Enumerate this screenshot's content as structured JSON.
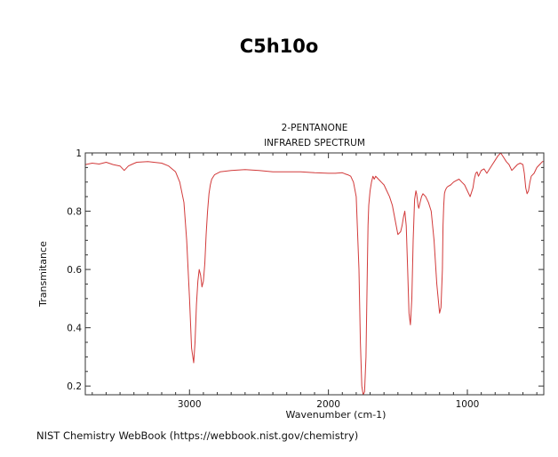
{
  "page": {
    "title": "C5h10o",
    "source_note": "NIST Chemistry WebBook (https://webbook.nist.gov/chemistry)"
  },
  "chart_data": {
    "type": "line",
    "title": "2-PENTANONE",
    "subtitle": "INFRARED SPECTRUM",
    "xlabel": "Wavenumber (cm-1)",
    "ylabel": "Transmitance",
    "xlim": [
      3750,
      450
    ],
    "ylim": [
      0.17,
      1.0
    ],
    "x_reversed": true,
    "x_ticks": [
      3000,
      2000,
      1000
    ],
    "y_ticks": [
      0.2,
      0.4,
      0.6,
      0.8,
      1.0
    ],
    "x_tick_labels": [
      "3000",
      "2000",
      "1000"
    ],
    "y_tick_labels": [
      "0.2",
      "0.4",
      "0.6",
      "0.8",
      "1"
    ],
    "grid": false,
    "line_color": "#d23a3a",
    "series": [
      {
        "x": [
          3750,
          3700,
          3650,
          3600,
          3550,
          3500,
          3470,
          3440,
          3410,
          3380,
          3300,
          3200,
          3150,
          3100,
          3070,
          3040,
          3020,
          3000,
          2985,
          2970,
          2960,
          2950,
          2940,
          2930,
          2920,
          2910,
          2900,
          2890,
          2880,
          2870,
          2860,
          2850,
          2840,
          2820,
          2780,
          2700,
          2600,
          2500,
          2400,
          2300,
          2200,
          2100,
          2000,
          1950,
          1900,
          1880,
          1860,
          1840,
          1820,
          1800,
          1780,
          1770,
          1760,
          1750,
          1740,
          1730,
          1720,
          1715,
          1710,
          1700,
          1690,
          1680,
          1670,
          1660,
          1650,
          1640,
          1630,
          1620,
          1600,
          1580,
          1560,
          1540,
          1520,
          1500,
          1480,
          1470,
          1460,
          1450,
          1440,
          1430,
          1420,
          1410,
          1400,
          1390,
          1380,
          1370,
          1365,
          1360,
          1355,
          1350,
          1340,
          1330,
          1320,
          1300,
          1280,
          1260,
          1240,
          1220,
          1200,
          1190,
          1180,
          1175,
          1170,
          1165,
          1160,
          1150,
          1140,
          1120,
          1100,
          1080,
          1060,
          1040,
          1020,
          1000,
          980,
          960,
          950,
          940,
          930,
          920,
          900,
          880,
          860,
          840,
          820,
          800,
          780,
          760,
          740,
          720,
          700,
          680,
          660,
          640,
          620,
          600,
          590,
          580,
          570,
          560,
          550,
          540,
          520,
          500,
          480,
          460,
          450
        ],
        "y": [
          0.96,
          0.965,
          0.962,
          0.968,
          0.96,
          0.955,
          0.94,
          0.955,
          0.962,
          0.968,
          0.97,
          0.965,
          0.955,
          0.935,
          0.9,
          0.83,
          0.7,
          0.5,
          0.33,
          0.28,
          0.35,
          0.48,
          0.56,
          0.6,
          0.58,
          0.54,
          0.56,
          0.62,
          0.72,
          0.8,
          0.86,
          0.89,
          0.91,
          0.925,
          0.935,
          0.94,
          0.943,
          0.94,
          0.935,
          0.935,
          0.935,
          0.932,
          0.93,
          0.93,
          0.932,
          0.928,
          0.925,
          0.92,
          0.9,
          0.85,
          0.6,
          0.35,
          0.2,
          0.15,
          0.18,
          0.3,
          0.6,
          0.75,
          0.82,
          0.87,
          0.9,
          0.92,
          0.91,
          0.92,
          0.915,
          0.91,
          0.905,
          0.9,
          0.89,
          0.87,
          0.85,
          0.82,
          0.77,
          0.72,
          0.73,
          0.75,
          0.78,
          0.8,
          0.75,
          0.6,
          0.45,
          0.41,
          0.5,
          0.7,
          0.84,
          0.87,
          0.86,
          0.84,
          0.82,
          0.81,
          0.83,
          0.85,
          0.86,
          0.85,
          0.83,
          0.8,
          0.7,
          0.55,
          0.45,
          0.47,
          0.6,
          0.75,
          0.82,
          0.86,
          0.87,
          0.88,
          0.885,
          0.89,
          0.9,
          0.905,
          0.91,
          0.9,
          0.89,
          0.87,
          0.85,
          0.88,
          0.91,
          0.93,
          0.935,
          0.92,
          0.94,
          0.945,
          0.93,
          0.945,
          0.96,
          0.975,
          0.99,
          1.0,
          0.985,
          0.97,
          0.96,
          0.94,
          0.95,
          0.96,
          0.965,
          0.96,
          0.93,
          0.88,
          0.86,
          0.87,
          0.9,
          0.92,
          0.93,
          0.95,
          0.96,
          0.97,
          0.97
        ]
      }
    ]
  }
}
